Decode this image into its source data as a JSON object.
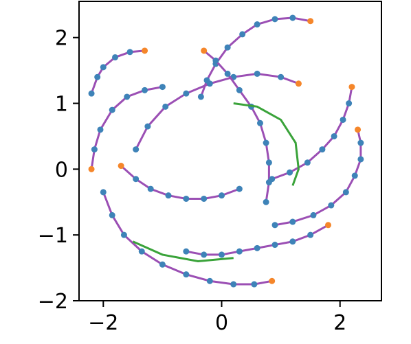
{
  "chart_data": {
    "type": "trajectory",
    "xlim": [
      -2.41,
      2.7
    ],
    "ylim": [
      -2,
      2.55
    ],
    "xticks": [
      {
        "value": -2,
        "label": "−2"
      },
      0,
      2
    ],
    "yticks": [
      {
        "value": -2,
        "label": "−2"
      },
      {
        "value": -1,
        "label": "−1"
      },
      0,
      1,
      2
    ],
    "series": [
      {
        "color": "#9b4fb4",
        "marker_color": "#3e83b8",
        "start_color": "#f5862a",
        "x": [
          -1.3,
          -1.55,
          -1.8,
          -2.0,
          -2.1,
          -2.2
        ],
        "values": [
          1.8,
          1.78,
          1.7,
          1.55,
          1.4,
          1.15
        ]
      },
      {
        "color": "#9b4fb4",
        "marker_color": "#3e83b8",
        "start_color": "#f5862a",
        "x": [
          1.5,
          1.2,
          0.9,
          0.6,
          0.35,
          0.1,
          -0.1,
          -0.25,
          -0.35
        ],
        "values": [
          2.25,
          2.3,
          2.28,
          2.2,
          2.05,
          1.85,
          1.6,
          1.35,
          1.1
        ]
      },
      {
        "color": "#9b4fb4",
        "marker_color": "#3e83b8",
        "start_color": "#f5862a",
        "x": [
          2.3,
          2.35,
          2.35,
          2.25,
          2.1,
          1.85,
          1.55,
          1.2,
          0.9
        ],
        "values": [
          0.6,
          0.4,
          0.15,
          -0.1,
          -0.35,
          -0.55,
          -0.7,
          -0.8,
          -0.85
        ]
      },
      {
        "color": "#9b4fb4",
        "marker_color": "#3e83b8",
        "start_color": "#f5862a",
        "x": [
          0.85,
          0.55,
          0.2,
          -0.2,
          -0.6,
          -1.0,
          -1.35,
          -1.65,
          -1.85,
          -2.0
        ],
        "values": [
          -1.7,
          -1.75,
          -1.75,
          -1.7,
          -1.6,
          -1.45,
          -1.25,
          -1.0,
          -0.7,
          -0.35
        ]
      },
      {
        "color": "#9b4fb4",
        "marker_color": "#3e83b8",
        "start_color": "#f5862a",
        "x": [
          -2.2,
          -2.15,
          -2.05,
          -1.85,
          -1.6,
          -1.3,
          -1.0
        ],
        "values": [
          0.0,
          0.3,
          0.6,
          0.9,
          1.1,
          1.2,
          1.25
        ]
      },
      {
        "color": "#9b4fb4",
        "marker_color": "#3e83b8",
        "start_color": "#f5862a",
        "x": [
          1.3,
          1.0,
          0.6,
          0.2,
          -0.2,
          -0.6,
          -0.95,
          -1.25,
          -1.45
        ],
        "values": [
          1.3,
          1.4,
          1.45,
          1.4,
          1.3,
          1.15,
          0.95,
          0.65,
          0.3
        ]
      },
      {
        "color": "#9b4fb4",
        "marker_color": "#3e83b8",
        "start_color": "#f5862a",
        "x": [
          1.8,
          1.5,
          1.2,
          0.9,
          0.6,
          0.3,
          0.0,
          -0.3,
          -0.6
        ],
        "values": [
          -0.85,
          -1.0,
          -1.1,
          -1.15,
          -1.2,
          -1.25,
          -1.3,
          -1.3,
          -1.25
        ]
      },
      {
        "color": "#9b4fb4",
        "marker_color": "#3e83b8",
        "start_color": "#f5862a",
        "x": [
          -0.3,
          -0.1,
          0.1,
          0.3,
          0.5,
          0.65,
          0.75,
          0.8,
          0.8,
          0.75
        ],
        "values": [
          1.8,
          1.65,
          1.45,
          1.2,
          0.95,
          0.7,
          0.4,
          0.1,
          -0.2,
          -0.5
        ]
      },
      {
        "color": "#9b4fb4",
        "marker_color": "#3e83b8",
        "start_color": "#f5862a",
        "x": [
          2.2,
          2.15,
          2.05,
          1.9,
          1.7,
          1.45,
          1.15,
          0.85
        ],
        "values": [
          1.25,
          1.0,
          0.75,
          0.5,
          0.3,
          0.1,
          -0.05,
          -0.15
        ]
      },
      {
        "color": "#9b4fb4",
        "marker_color": "#3e83b8",
        "start_color": "#f5862a",
        "x": [
          -1.7,
          -1.45,
          -1.2,
          -0.9,
          -0.6,
          -0.3,
          0.0,
          0.3
        ],
        "values": [
          0.05,
          -0.15,
          -0.3,
          -0.4,
          -0.45,
          -0.45,
          -0.4,
          -0.3
        ]
      },
      {
        "color": "#3aa33a",
        "x": [
          1.2,
          1.3,
          1.25,
          1.0,
          0.6,
          0.2
        ],
        "values": [
          -0.25,
          0.0,
          0.4,
          0.75,
          0.95,
          1.0
        ]
      },
      {
        "color": "#3aa33a",
        "x": [
          -1.5,
          -1.0,
          -0.4,
          0.2
        ],
        "values": [
          -1.1,
          -1.3,
          -1.4,
          -1.35
        ]
      }
    ]
  }
}
